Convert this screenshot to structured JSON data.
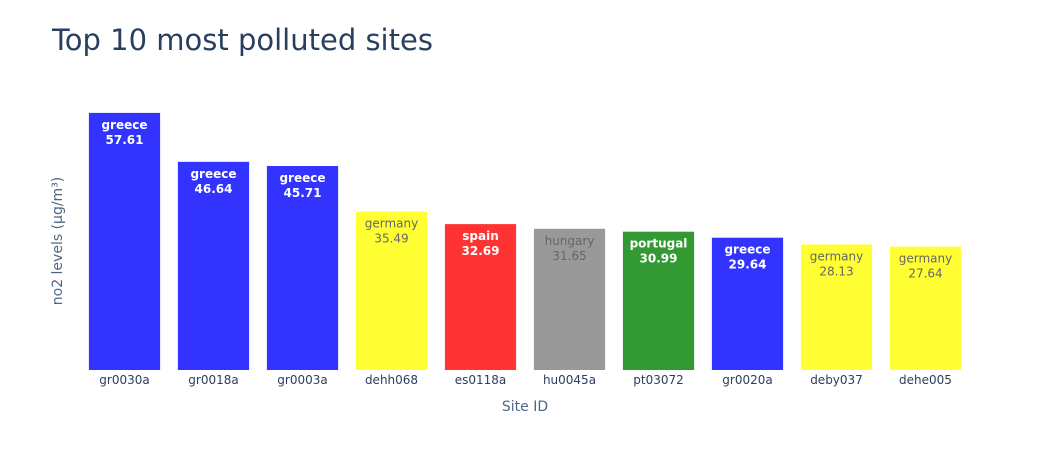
{
  "chart_data": {
    "type": "bar",
    "title": "Top 10 most polluted sites",
    "xlabel": "Site ID",
    "ylabel": "no2 levels (μg/m³)",
    "ylim": [
      0,
      60.5
    ],
    "categories": [
      "gr0030a",
      "gr0018a",
      "gr0003a",
      "dehh068",
      "es0118a",
      "hu0045a",
      "pt03072",
      "gr0020a",
      "deby037",
      "dehe005"
    ],
    "values": [
      57.61,
      46.64,
      45.71,
      35.49,
      32.69,
      31.65,
      30.99,
      29.64,
      28.13,
      27.64
    ],
    "countries": [
      "greece",
      "greece",
      "greece",
      "germany",
      "spain",
      "hungary",
      "portugal",
      "greece",
      "germany",
      "germany"
    ],
    "value_labels": [
      "57.61",
      "46.64",
      "45.71",
      "35.49",
      "32.69",
      "31.65",
      "30.99",
      "29.64",
      "28.13",
      "27.64"
    ],
    "bar_colors": [
      "#3333ff",
      "#3333ff",
      "#3333ff",
      "#ffff33",
      "#ff3333",
      "#999999",
      "#339933",
      "#3333ff",
      "#ffff33",
      "#ffff33"
    ],
    "label_colors": [
      "#ffffff",
      "#ffffff",
      "#ffffff",
      "#666666",
      "#ffffff",
      "#666666",
      "#ffffff",
      "#ffffff",
      "#666666",
      "#666666"
    ],
    "grid": false,
    "show_y_ticks": false
  }
}
